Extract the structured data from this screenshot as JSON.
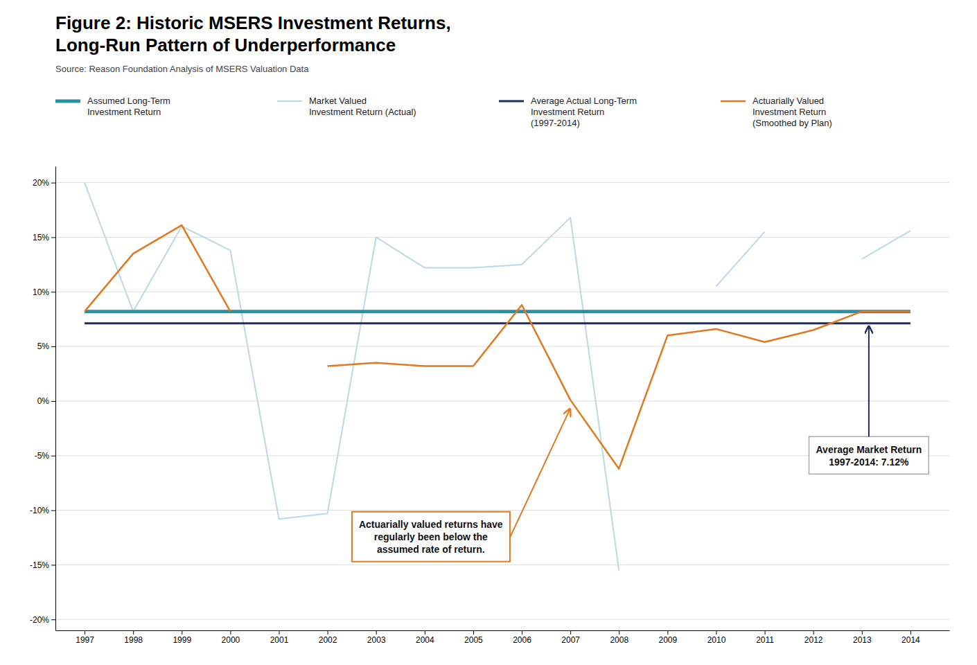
{
  "chart_data": {
    "type": "line",
    "title": "Figure 2: Historic MSERS Investment Returns,\nLong-Run Pattern of Underperformance",
    "subtitle": "Source: Reason Foundation Analysis of MSERS Valuation Data",
    "x": [
      1997,
      1998,
      1999,
      2000,
      2001,
      2002,
      2003,
      2004,
      2005,
      2006,
      2007,
      2008,
      2009,
      2010,
      2011,
      2012,
      2013,
      2014
    ],
    "xlim": [
      1996.4,
      2014.8
    ],
    "xticks": [
      1997,
      1998,
      1999,
      2000,
      2001,
      2002,
      2003,
      2004,
      2005,
      2006,
      2007,
      2008,
      2009,
      2010,
      2011,
      2012,
      2013,
      2014
    ],
    "ylim": [
      -0.21,
      0.215
    ],
    "yticks": [
      {
        "value": -0.2,
        "label": "-20%"
      },
      {
        "value": -0.15,
        "label": "-15%"
      },
      {
        "value": -0.1,
        "label": "-10%"
      },
      {
        "value": -0.05,
        "label": "-5%"
      },
      {
        "value": 0.0,
        "label": "0%"
      },
      {
        "value": 0.05,
        "label": "5%"
      },
      {
        "value": 0.1,
        "label": "10%"
      },
      {
        "value": 0.15,
        "label": "15%"
      },
      {
        "value": 0.2,
        "label": "20%"
      }
    ],
    "grid": true,
    "legend": "top",
    "series": [
      {
        "name": "Assumed Long-Term\nInvestment Return",
        "color": "#2B8FA3",
        "values": [
          0.082,
          0.082,
          0.082,
          0.082,
          0.082,
          0.082,
          0.082,
          0.082,
          0.082,
          0.082,
          0.082,
          0.082,
          0.082,
          0.082,
          0.082,
          0.082,
          0.082,
          0.082
        ]
      },
      {
        "name": "Market Valued\nInvestment Return (Actual)",
        "color": "#B8D9E8",
        "values": [
          0.2,
          0.082,
          0.16,
          0.138,
          -0.108,
          -0.103,
          0.15,
          0.122,
          0.122,
          0.125,
          0.168,
          -0.155,
          null,
          0.105,
          0.155,
          null,
          0.13,
          0.156
        ]
      },
      {
        "name": "Average Actual Long-Term\nInvestment Return\n(1997-2014)",
        "color": "#1C2D5E",
        "values": [
          0.0712,
          0.0712,
          0.0712,
          0.0712,
          0.0712,
          0.0712,
          0.0712,
          0.0712,
          0.0712,
          0.0712,
          0.0712,
          0.0712,
          0.0712,
          0.0712,
          0.0712,
          0.0712,
          0.0712,
          0.0712
        ]
      },
      {
        "name": "Actuarially Valued\nInvestment Return\n(Smoothed by Plan)",
        "color": "#E07820",
        "values": [
          0.082,
          0.135,
          0.161,
          0.082,
          null,
          0.032,
          0.035,
          0.032,
          0.032,
          0.088,
          0.001,
          -0.062,
          0.06,
          0.066,
          0.054,
          0.065,
          0.082,
          0.082
        ]
      }
    ],
    "annotations": [
      "Actuarially valued returns have\nregularly been below the\nassumed rate of return.",
      "Average Market Return\n1997-2014: 7.12%"
    ]
  }
}
